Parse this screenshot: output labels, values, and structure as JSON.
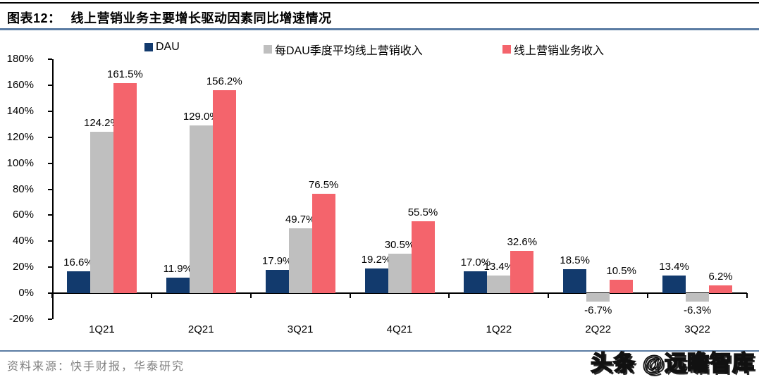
{
  "header": {
    "title_prefix": "图表12：",
    "title": "线上营销业务主要增长驱动因素同比增速情况"
  },
  "footer": {
    "source": "资料来源：快手财报，华泰研究",
    "watermark": "头条 @远瞻智库"
  },
  "colors": {
    "dau": "#123a6d",
    "arpu": "#bfbfbf",
    "revenue": "#f4646c",
    "rule_blue": "#5b7ca3",
    "top_rule": "#000000",
    "source_text": "#7f7f7f"
  },
  "chart_data": {
    "type": "bar",
    "categories": [
      "1Q21",
      "2Q21",
      "3Q21",
      "4Q21",
      "1Q22",
      "2Q22",
      "3Q22"
    ],
    "series": [
      {
        "name": "DAU",
        "color": "#123a6d",
        "values": [
          16.6,
          11.9,
          17.9,
          19.2,
          17.0,
          18.5,
          13.4
        ]
      },
      {
        "name": "每DAU季度平均线上营销收入",
        "color": "#bfbfbf",
        "values": [
          124.2,
          129.0,
          49.7,
          30.5,
          13.4,
          -6.7,
          -6.3
        ]
      },
      {
        "name": "线上营销业务收入",
        "color": "#f4646c",
        "values": [
          161.5,
          156.2,
          76.5,
          55.5,
          32.6,
          10.5,
          6.2
        ]
      }
    ],
    "title": "线上营销业务主要增长驱动因素同比增速情况",
    "xlabel": "",
    "ylabel": "",
    "ylim": [
      -20,
      180
    ],
    "y_step": 20,
    "y_tick_labels": [
      "180%",
      "160%",
      "140%",
      "120%",
      "100%",
      "80%",
      "60%",
      "40%",
      "20%",
      "0%",
      "-20%"
    ],
    "value_label_format": "{v}%",
    "legend_position": "top",
    "grid": false
  }
}
